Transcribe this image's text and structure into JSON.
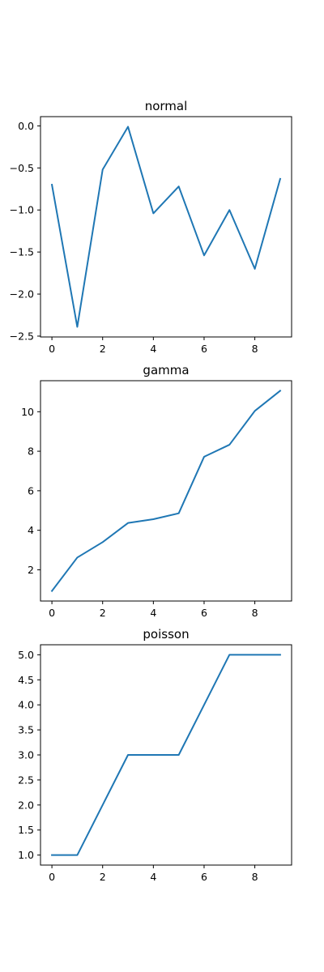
{
  "chart_data": [
    {
      "type": "line",
      "title": "normal",
      "xlabel": "",
      "ylabel": "",
      "x": [
        0,
        1,
        2,
        3,
        4,
        5,
        6,
        7,
        8,
        9
      ],
      "series": [
        {
          "values": [
            -0.7,
            -2.39,
            -0.52,
            -0.01,
            -1.04,
            -0.72,
            -1.54,
            -1.0,
            -1.7,
            -0.63
          ]
        }
      ],
      "xlim": [
        -0.45,
        9.45
      ],
      "ylim": [
        -2.51,
        0.11
      ],
      "xticks": [
        0,
        2,
        4,
        6,
        8
      ],
      "yticks": [
        0.0,
        -0.5,
        -1.0,
        -1.5,
        -2.0,
        -2.5
      ],
      "ytick_labels": [
        "0.0",
        "−0.5",
        "−1.0",
        "−1.5",
        "−2.0",
        "−2.5"
      ],
      "grid": false,
      "legend": false
    },
    {
      "type": "line",
      "title": "gamma",
      "xlabel": "",
      "ylabel": "",
      "x": [
        0,
        1,
        2,
        3,
        4,
        5,
        6,
        7,
        8,
        9
      ],
      "series": [
        {
          "values": [
            0.93,
            2.62,
            3.4,
            4.37,
            4.56,
            4.86,
            7.72,
            8.33,
            10.04,
            11.06
          ]
        }
      ],
      "xlim": [
        -0.45,
        9.45
      ],
      "ylim": [
        0.42,
        11.57
      ],
      "xticks": [
        0,
        2,
        4,
        6,
        8
      ],
      "yticks": [
        2,
        4,
        6,
        8,
        10
      ],
      "ytick_labels": [
        "2",
        "4",
        "6",
        "8",
        "10"
      ],
      "grid": false,
      "legend": false
    },
    {
      "type": "line",
      "title": "poisson",
      "xlabel": "",
      "ylabel": "",
      "x": [
        0,
        1,
        2,
        3,
        4,
        5,
        6,
        7,
        8,
        9
      ],
      "series": [
        {
          "values": [
            1,
            1,
            2,
            3,
            3,
            3,
            4,
            5,
            5,
            5
          ]
        }
      ],
      "xlim": [
        -0.45,
        9.45
      ],
      "ylim": [
        0.8,
        5.2
      ],
      "xticks": [
        0,
        2,
        4,
        6,
        8
      ],
      "yticks": [
        1.0,
        1.5,
        2.0,
        2.5,
        3.0,
        3.5,
        4.0,
        4.5,
        5.0
      ],
      "ytick_labels": [
        "1.0",
        "1.5",
        "2.0",
        "2.5",
        "3.0",
        "3.5",
        "4.0",
        "4.5",
        "5.0"
      ],
      "grid": false,
      "legend": false
    }
  ],
  "colors": {
    "line": "#1f77b4",
    "axis": "#000000",
    "background": "#ffffff"
  }
}
